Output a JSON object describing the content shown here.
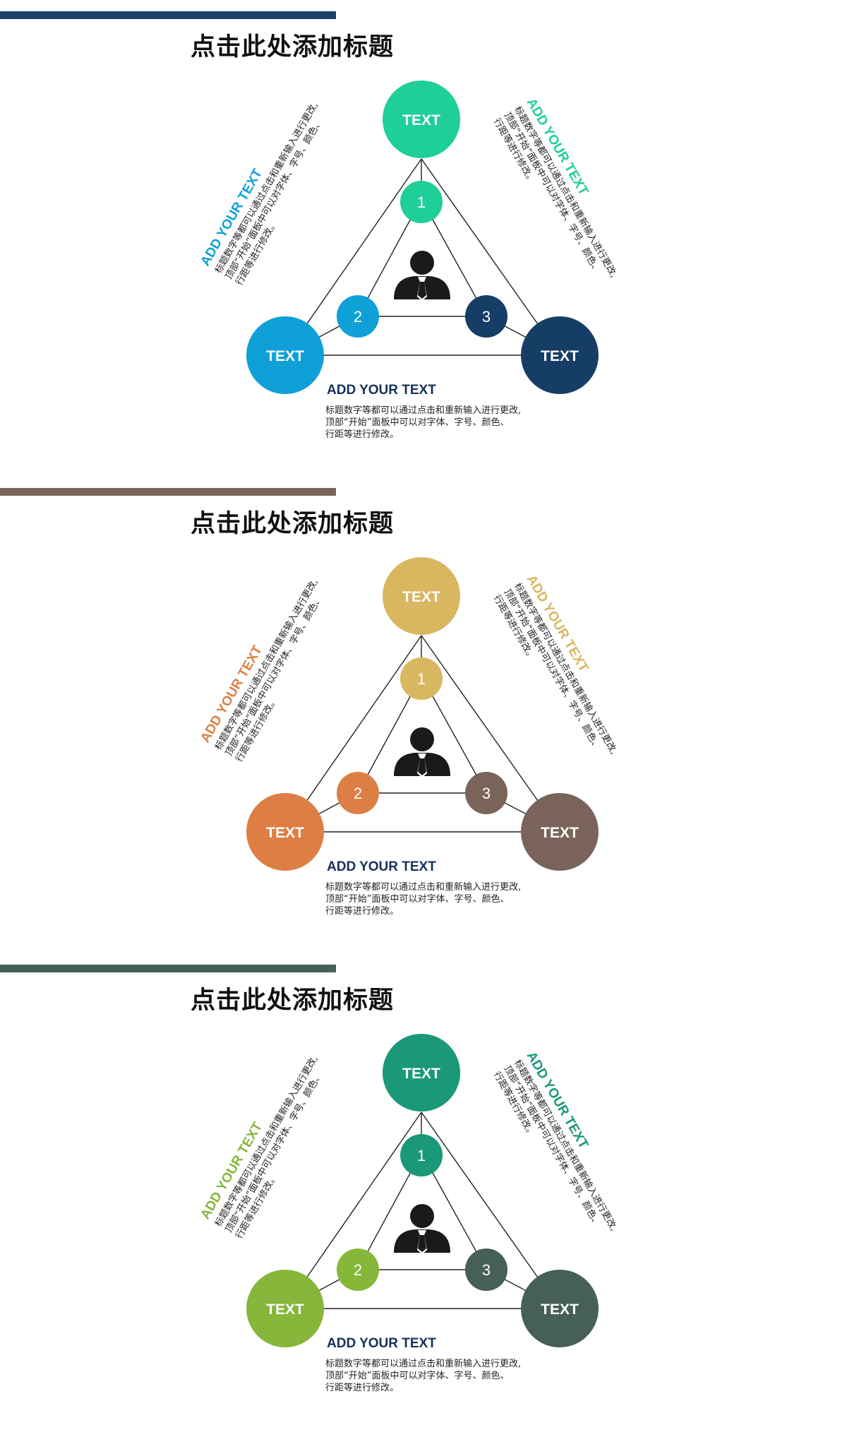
{
  "slides": [
    {
      "title": "点击此处添加标题",
      "colors": {
        "bar": "#1a3f6b",
        "top": "#1fcf98",
        "left": "#0fa0d8",
        "right": "#163d66"
      },
      "nodes": {
        "top": "TEXT",
        "left": "TEXT",
        "right": "TEXT"
      },
      "numbers": [
        "1",
        "2",
        "3"
      ],
      "person_icon": "person-icon",
      "text_blocks": {
        "left": {
          "heading": "ADD YOUR TEXT",
          "lines": [
            "标题数字等都可以通过点击和重新输入进行更改,",
            "顶部“开始”面板中可以对字体、字号、颜色、",
            "行距等进行修改。"
          ]
        },
        "right": {
          "heading": "ADD YOUR TEXT",
          "lines": [
            "标题数字等都可以通过点击和重新输入进行更改,",
            "顶部“开始”面板中可以对字体、字号、颜色、",
            "行距等进行修改。"
          ]
        },
        "bottom": {
          "heading": "ADD YOUR TEXT",
          "heading_color": "#16305a",
          "lines": [
            "标题数字等都可以通过点击和重新输入进行更改,",
            "顶部“开始”面板中可以对字体、字号、颜色、",
            "行距等进行修改。"
          ]
        }
      }
    },
    {
      "title": "点击此处添加标题",
      "colors": {
        "bar": "#7a6358",
        "top": "#d9b660",
        "left": "#dd7f45",
        "right": "#7a6358"
      },
      "nodes": {
        "top": "TEXT",
        "left": "TEXT",
        "right": "TEXT"
      },
      "numbers": [
        "1",
        "2",
        "3"
      ],
      "person_icon": "person-icon",
      "text_blocks": {
        "left": {
          "heading": "ADD YOUR TEXT",
          "lines": [
            "标题数字等都可以通过点击和重新输入进行更改,",
            "顶部“开始”面板中可以对字体、字号、颜色、",
            "行距等进行修改。"
          ]
        },
        "right": {
          "heading": "ADD YOUR TEXT",
          "lines": [
            "标题数字等都可以通过点击和重新输入进行更改,",
            "顶部“开始”面板中可以对字体、字号、颜色、",
            "行距等进行修改。"
          ]
        },
        "bottom": {
          "heading": "ADD YOUR TEXT",
          "heading_color": "#16305a",
          "lines": [
            "标题数字等都可以通过点击和重新输入进行更改,",
            "顶部“开始”面板中可以对字体、字号、颜色、",
            "行距等进行修改。"
          ]
        }
      }
    },
    {
      "title": "点击此处添加标题",
      "colors": {
        "bar": "#465f58",
        "top": "#1a9878",
        "left": "#86b63a",
        "right": "#465f58"
      },
      "nodes": {
        "top": "TEXT",
        "left": "TEXT",
        "right": "TEXT"
      },
      "numbers": [
        "1",
        "2",
        "3"
      ],
      "person_icon": "person-icon",
      "text_blocks": {
        "left": {
          "heading": "ADD YOUR TEXT",
          "lines": [
            "标题数字等都可以通过点击和重新输入进行更改,",
            "顶部“开始”面板中可以对字体、字号、颜色、",
            "行距等进行修改。"
          ]
        },
        "right": {
          "heading": "ADD YOUR TEXT",
          "lines": [
            "标题数字等都可以通过点击和重新输入进行更改,",
            "顶部“开始”面板中可以对字体、字号、颜色、",
            "行距等进行修改。"
          ]
        },
        "bottom": {
          "heading": "ADD YOUR TEXT",
          "heading_color": "#16305a",
          "lines": [
            "标题数字等都可以通过点击和重新输入进行更改,",
            "顶部“开始”面板中可以对字体、字号、颜色、",
            "行距等进行修改。"
          ]
        }
      }
    }
  ]
}
